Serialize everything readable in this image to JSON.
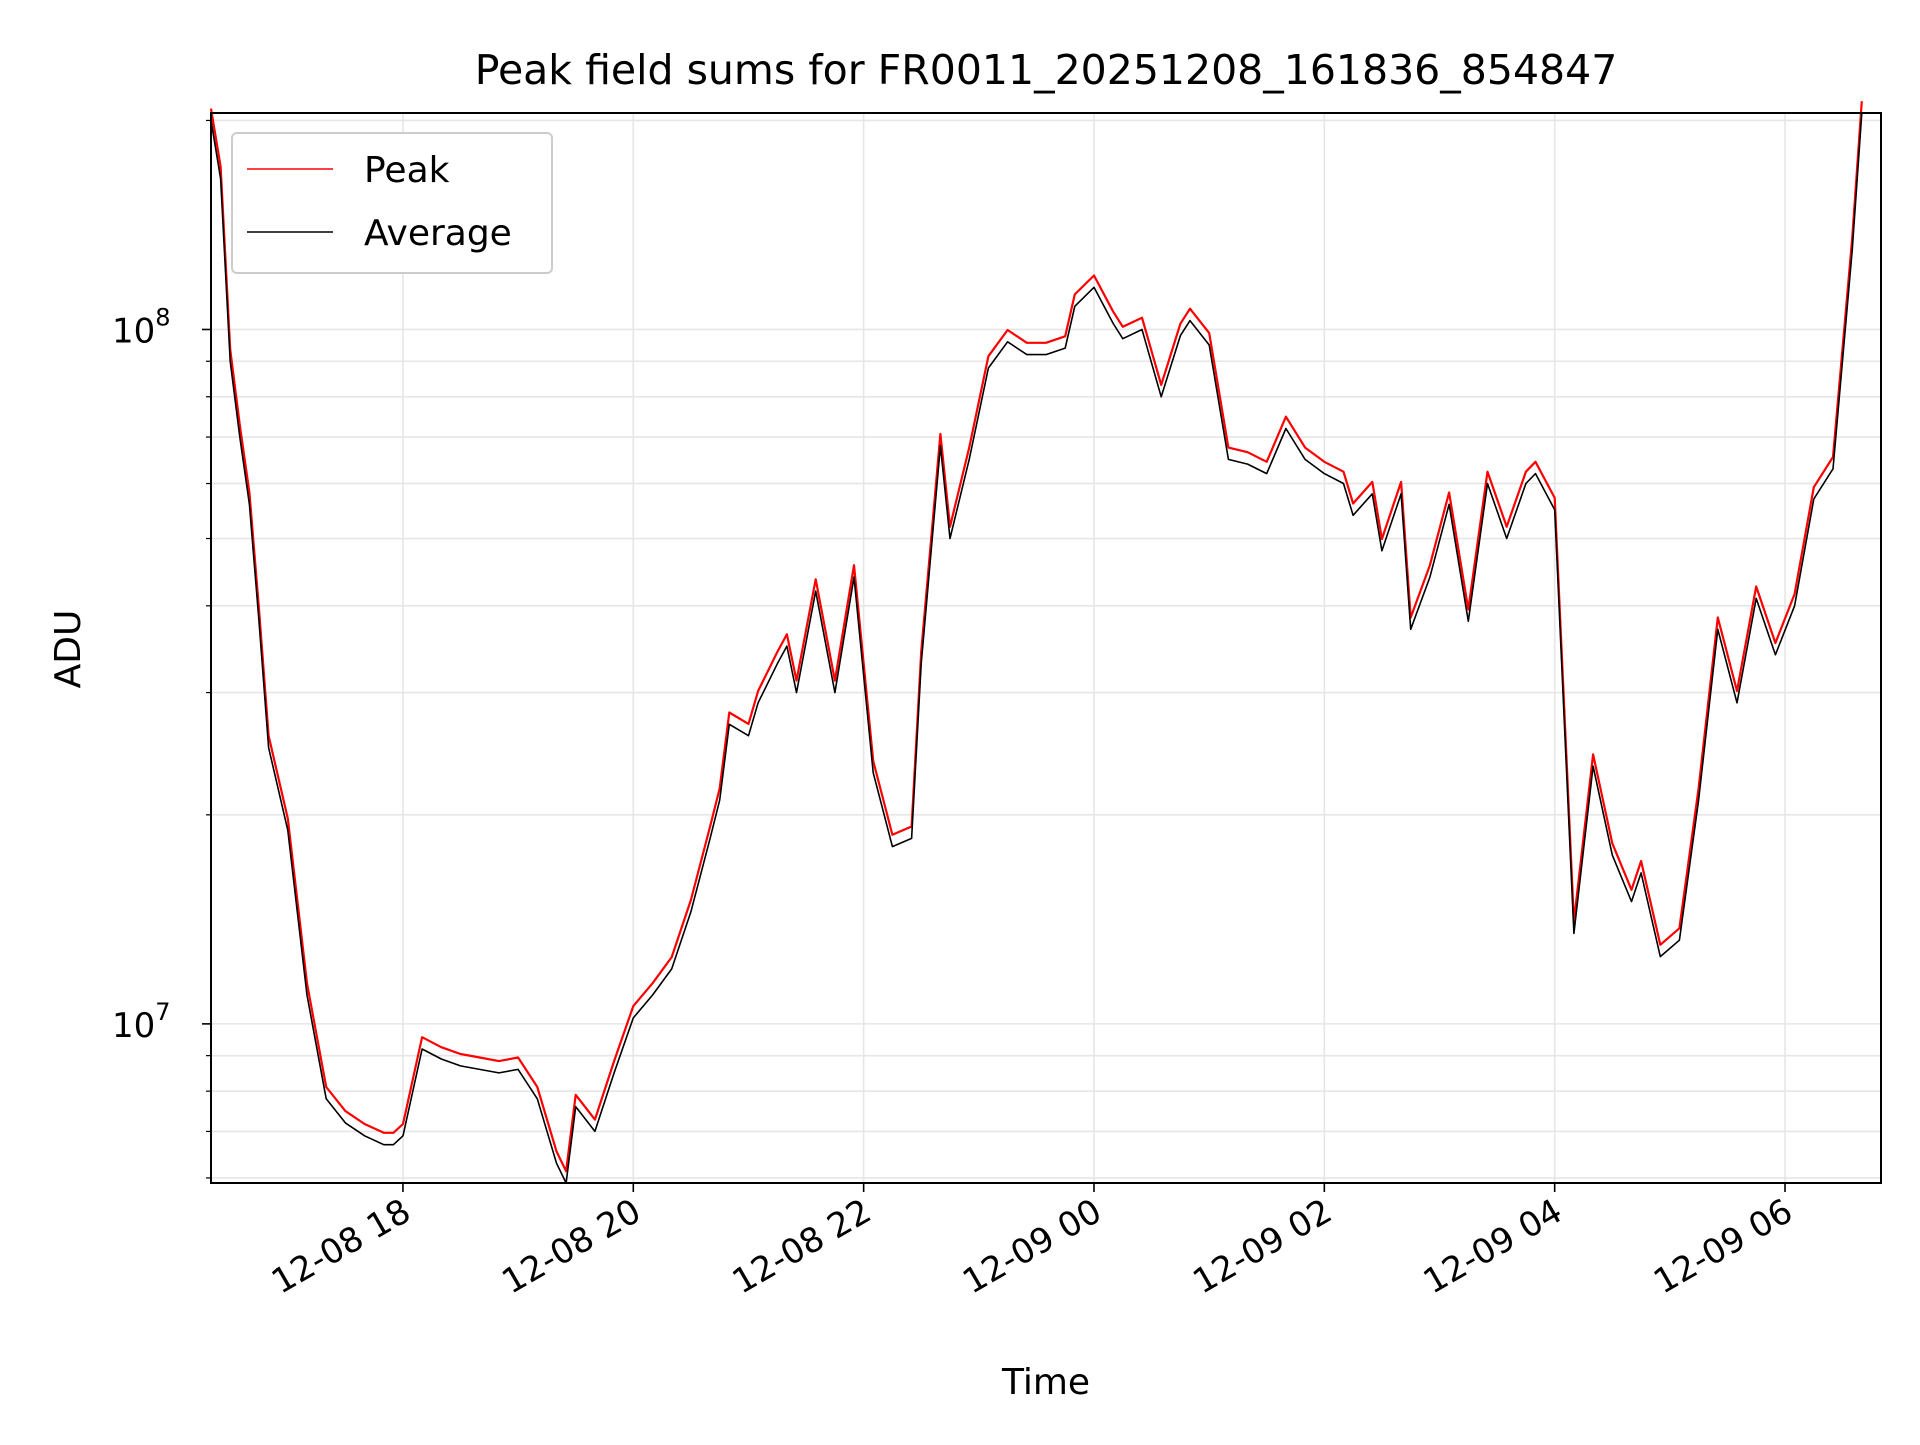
{
  "chart_data": {
    "type": "line",
    "title": "Peak field sums for FR0011_20251208_161836_854847",
    "xlabel": "Time",
    "ylabel": "ADU",
    "yscale": "log",
    "ylim": [
      5900000,
      205000000
    ],
    "xlim": [
      "2025-12-08 16:20",
      "2025-12-09 06:50"
    ],
    "grid": true,
    "legend_position": "upper-left",
    "x_tick_labels": [
      "12-08 18",
      "12-08 20",
      "12-08 22",
      "12-09 00",
      "12-09 02",
      "12-09 04",
      "12-09 06"
    ],
    "x_ticks": [
      "2025-12-08 18:00",
      "2025-12-08 20:00",
      "2025-12-08 22:00",
      "2025-12-09 00:00",
      "2025-12-09 02:00",
      "2025-12-09 04:00",
      "2025-12-09 06:00"
    ],
    "y_ticks": [
      10000000,
      100000000
    ],
    "y_tick_labels": [
      {
        "base": "10",
        "exp": "7"
      },
      {
        "base": "10",
        "exp": "8"
      }
    ],
    "series": [
      {
        "name": "Peak",
        "color": "#ff0000"
      },
      {
        "name": "Average",
        "color": "#000000"
      }
    ],
    "x": [
      "2025-12-08 16:20",
      "2025-12-08 16:25",
      "2025-12-08 16:30",
      "2025-12-08 16:35",
      "2025-12-08 16:40",
      "2025-12-08 16:45",
      "2025-12-08 16:50",
      "2025-12-08 17:00",
      "2025-12-08 17:10",
      "2025-12-08 17:20",
      "2025-12-08 17:30",
      "2025-12-08 17:40",
      "2025-12-08 17:50",
      "2025-12-08 17:55",
      "2025-12-08 18:00",
      "2025-12-08 18:10",
      "2025-12-08 18:20",
      "2025-12-08 18:30",
      "2025-12-08 18:40",
      "2025-12-08 18:50",
      "2025-12-08 19:00",
      "2025-12-08 19:10",
      "2025-12-08 19:20",
      "2025-12-08 19:25",
      "2025-12-08 19:30",
      "2025-12-08 19:40",
      "2025-12-08 19:50",
      "2025-12-08 20:00",
      "2025-12-08 20:10",
      "2025-12-08 20:20",
      "2025-12-08 20:30",
      "2025-12-08 20:40",
      "2025-12-08 20:45",
      "2025-12-08 20:50",
      "2025-12-08 21:00",
      "2025-12-08 21:05",
      "2025-12-08 21:15",
      "2025-12-08 21:20",
      "2025-12-08 21:25",
      "2025-12-08 21:35",
      "2025-12-08 21:45",
      "2025-12-08 21:55",
      "2025-12-08 22:05",
      "2025-12-08 22:15",
      "2025-12-08 22:25",
      "2025-12-08 22:30",
      "2025-12-08 22:40",
      "2025-12-08 22:45",
      "2025-12-08 22:55",
      "2025-12-08 23:05",
      "2025-12-08 23:15",
      "2025-12-08 23:25",
      "2025-12-08 23:35",
      "2025-12-08 23:45",
      "2025-12-08 23:50",
      "2025-12-09 00:00",
      "2025-12-09 00:10",
      "2025-12-09 00:15",
      "2025-12-09 00:25",
      "2025-12-09 00:35",
      "2025-12-09 00:45",
      "2025-12-09 00:50",
      "2025-12-09 01:00",
      "2025-12-09 01:10",
      "2025-12-09 01:20",
      "2025-12-09 01:30",
      "2025-12-09 01:40",
      "2025-12-09 01:50",
      "2025-12-09 02:00",
      "2025-12-09 02:10",
      "2025-12-09 02:15",
      "2025-12-09 02:25",
      "2025-12-09 02:30",
      "2025-12-09 02:40",
      "2025-12-09 02:45",
      "2025-12-09 02:55",
      "2025-12-09 03:05",
      "2025-12-09 03:15",
      "2025-12-09 03:25",
      "2025-12-09 03:35",
      "2025-12-09 03:45",
      "2025-12-09 03:50",
      "2025-12-09 04:00",
      "2025-12-09 04:10",
      "2025-12-09 04:20",
      "2025-12-09 04:30",
      "2025-12-09 04:40",
      "2025-12-09 04:45",
      "2025-12-09 04:55",
      "2025-12-09 05:05",
      "2025-12-09 05:15",
      "2025-12-09 05:25",
      "2025-12-09 05:35",
      "2025-12-09 05:45",
      "2025-12-09 05:55",
      "2025-12-09 06:05",
      "2025-12-09 06:15",
      "2025-12-09 06:25",
      "2025-12-09 06:35",
      "2025-12-09 06:40"
    ],
    "values": [
      200000000,
      165000000,
      90000000,
      70000000,
      56000000,
      38000000,
      25000000,
      19000000,
      11000000,
      7800000,
      7200000,
      6900000,
      6700000,
      6700000,
      6900000,
      9200000,
      8900000,
      8700000,
      8600000,
      8500000,
      8600000,
      7800000,
      6300000,
      5900000,
      7600000,
      7000000,
      8500000,
      10200000,
      11000000,
      12000000,
      14500000,
      18500000,
      21000000,
      27000000,
      26000000,
      29000000,
      33000000,
      35000000,
      30000000,
      42000000,
      30000000,
      44000000,
      23000000,
      18000000,
      18500000,
      33000000,
      68000000,
      50000000,
      65000000,
      88000000,
      96000000,
      92000000,
      92000000,
      94000000,
      108000000,
      115000000,
      102000000,
      97000000,
      100000000,
      80000000,
      98000000,
      103000000,
      95000000,
      65000000,
      64000000,
      62000000,
      72000000,
      65000000,
      62000000,
      60000000,
      54000000,
      58000000,
      48000000,
      58000000,
      37000000,
      44000000,
      56000000,
      38000000,
      60000000,
      50000000,
      60000000,
      62000000,
      55000000,
      13500000,
      23500000,
      17500000,
      15000000,
      16500000,
      12500000,
      13200000,
      21000000,
      37000000,
      29000000,
      41000000,
      34000000,
      40000000,
      57000000,
      63000000,
      130000000,
      205000000
    ]
  }
}
